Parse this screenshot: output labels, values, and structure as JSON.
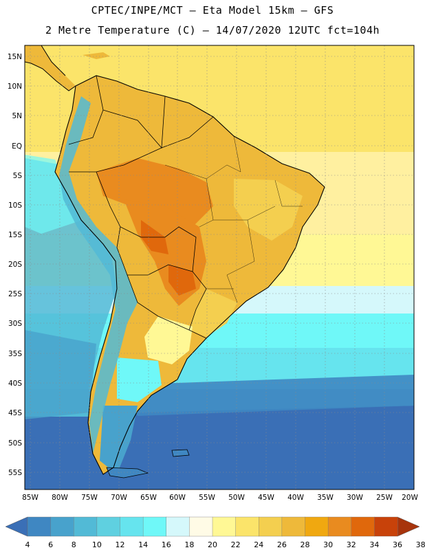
{
  "header": {
    "line1": "CPTEC/INPE/MCT –  Eta Model 15km – GFS",
    "line2": "2 Metre Temperature (C) – 14/07/2020 12UTC fct=104h"
  },
  "map": {
    "region": "South America",
    "lon_range": [
      -85,
      -20
    ],
    "lat_range": [
      -58,
      17
    ],
    "lat_ticks": [
      "15N",
      "10N",
      "5N",
      "EQ",
      "5S",
      "10S",
      "15S",
      "20S",
      "25S",
      "30S",
      "35S",
      "40S",
      "45S",
      "50S",
      "55S"
    ],
    "lon_ticks": [
      "85W",
      "80W",
      "75W",
      "70W",
      "65W",
      "60W",
      "55W",
      "50W",
      "45W",
      "40W",
      "35W",
      "30W",
      "25W",
      "20W"
    ]
  },
  "legend": {
    "colors": [
      "#3a6fb6",
      "#3f87c2",
      "#48a2cc",
      "#52bad6",
      "#5fd0e0",
      "#66e4ee",
      "#6ff8f8",
      "#d5f8fb",
      "#fffbe6",
      "#fff895",
      "#fbe46a",
      "#f4cf4f",
      "#eeb93a",
      "#f0a810",
      "#e98b1f",
      "#e0680c",
      "#c8420a",
      "#a7340c"
    ],
    "labels": [
      "4",
      "6",
      "8",
      "10",
      "12",
      "14",
      "16",
      "18",
      "20",
      "22",
      "24",
      "26",
      "28",
      "30",
      "32",
      "34",
      "36",
      "38"
    ]
  }
}
